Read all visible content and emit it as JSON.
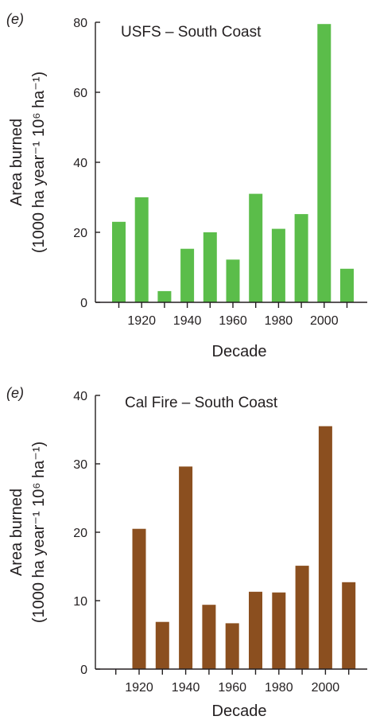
{
  "chart_data": [
    {
      "type": "bar",
      "panel_label": "(e)",
      "title": "USFS – South Coast",
      "xlabel": "Decade",
      "ylabel_line1": "Area burned",
      "ylabel_line2": "(1000 ha year⁻¹ 10⁶ ha⁻¹)",
      "categories": [
        1910,
        1920,
        1930,
        1940,
        1950,
        1960,
        1970,
        1980,
        1990,
        2000,
        2010
      ],
      "values": [
        23,
        30,
        3.2,
        15.3,
        20,
        12.2,
        31,
        21,
        25.2,
        79.5,
        9.6
      ],
      "x_tick_labels": [
        "1920",
        "1940",
        "1960",
        "1980",
        "2000"
      ],
      "y_ticks": [
        0,
        20,
        40,
        60,
        80
      ],
      "ylim": [
        0,
        80
      ],
      "color": "#5bbd4a"
    },
    {
      "type": "bar",
      "panel_label": "(e)",
      "title": "Cal Fire – South Coast",
      "xlabel": "Decade",
      "ylabel_line1": "Area burned",
      "ylabel_line2": "(1000 ha year⁻¹ 10⁶ ha⁻¹)",
      "categories": [
        1920,
        1930,
        1940,
        1950,
        1960,
        1970,
        1980,
        1990,
        2000,
        2010
      ],
      "values": [
        20.5,
        6.9,
        29.6,
        9.4,
        6.7,
        11.3,
        11.2,
        15.1,
        35.5,
        12.7
      ],
      "x_tick_labels": [
        "1920",
        "1940",
        "1960",
        "1980",
        "2000"
      ],
      "y_ticks": [
        0,
        10,
        20,
        30,
        40
      ],
      "ylim": [
        0,
        40
      ],
      "color": "#8b4f1f"
    }
  ]
}
